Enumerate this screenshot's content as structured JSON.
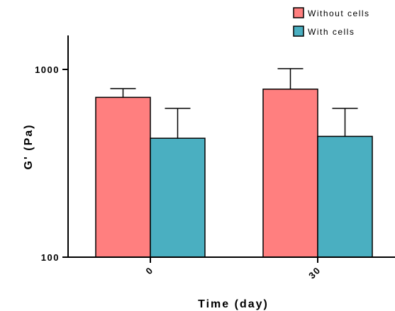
{
  "chart_data": {
    "type": "bar",
    "scale": "log",
    "categories": [
      "0",
      "30"
    ],
    "xlabel": "Time (day)",
    "ylabel": "G' (Pa)",
    "ylim": [
      100,
      1600
    ],
    "yticks": [
      {
        "value": 100,
        "label": "100"
      },
      {
        "value": 1000,
        "label": "1000"
      }
    ],
    "legend_position": "top-right",
    "series": [
      {
        "name": "Without cells",
        "color": "#FF7F7F",
        "values": [
          710,
          785
        ],
        "error_upper": [
          790,
          1010
        ]
      },
      {
        "name": "With cells",
        "color": "#4AAFC1",
        "values": [
          430,
          440
        ],
        "error_upper": [
          620,
          620
        ]
      }
    ]
  }
}
